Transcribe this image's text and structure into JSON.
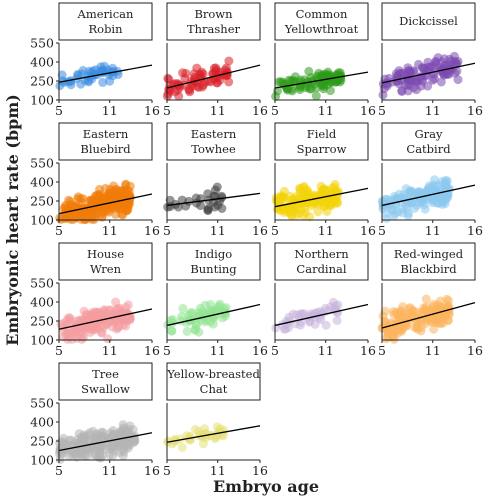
{
  "chart_data": {
    "type": "scatter",
    "ylabel": "Embryonic heart rate (bpm)",
    "xlabel": "Embryo age",
    "xlim": [
      5,
      16
    ],
    "ylim": [
      100,
      550
    ],
    "x_ticks": [
      "5",
      "11",
      "16"
    ],
    "y_ticks": [
      "100",
      "250",
      "400",
      "550"
    ],
    "panels": [
      {
        "name": "American Robin",
        "title_lines": [
          "American",
          "Robin"
        ],
        "color": "#3b8de0",
        "n": 45,
        "xmax": 12,
        "fit": [
          240,
          375
        ],
        "scatter": 55
      },
      {
        "name": "Brown Thrasher",
        "title_lines": [
          "Brown",
          "Thrasher"
        ],
        "color": "#d8202a",
        "n": 70,
        "xmax": 12.5,
        "fit": [
          195,
          375
        ],
        "scatter": 60
      },
      {
        "name": "Common Yellowthroat",
        "title_lines": [
          "Common",
          "Yellowthroat"
        ],
        "color": "#2e9a1a",
        "n": 90,
        "xmax": 13,
        "fit": [
          195,
          320
        ],
        "scatter": 55
      },
      {
        "name": "Dickcissel",
        "title_lines": [
          "Dickcissel"
        ],
        "color": "#7b4bb0",
        "n": 110,
        "xmax": 14,
        "fit": [
          235,
          390
        ],
        "scatter": 80
      },
      {
        "name": "Eastern Bluebird",
        "title_lines": [
          "Eastern",
          "Bluebird"
        ],
        "color": "#f07b0a",
        "n": 260,
        "xmax": 13.5,
        "fit": [
          150,
          305
        ],
        "scatter": 75
      },
      {
        "name": "Eastern Towhee",
        "title_lines": [
          "Eastern",
          "Towhee"
        ],
        "color": "#404040",
        "n": 28,
        "xmax": 11.5,
        "fit": [
          215,
          310
        ],
        "scatter": 50
      },
      {
        "name": "Field Sparrow",
        "title_lines": [
          "Field",
          "Sparrow"
        ],
        "color": "#f2d30a",
        "n": 140,
        "xmax": 12.5,
        "fit": [
          205,
          350
        ],
        "scatter": 80
      },
      {
        "name": "Gray Catbird",
        "title_lines": [
          "Gray",
          "Catbird"
        ],
        "color": "#8cc8ef",
        "n": 150,
        "xmax": 13,
        "fit": [
          215,
          375
        ],
        "scatter": 70
      },
      {
        "name": "House Wren",
        "title_lines": [
          "House",
          "Wren"
        ],
        "color": "#f49ca0",
        "n": 170,
        "xmax": 13.5,
        "fit": [
          185,
          345
        ],
        "scatter": 70
      },
      {
        "name": "Indigo Bunting",
        "title_lines": [
          "Indigo",
          "Bunting"
        ],
        "color": "#8fe38f",
        "n": 60,
        "xmax": 12,
        "fit": [
          215,
          380
        ],
        "scatter": 60
      },
      {
        "name": "Northern Cardinal",
        "title_lines": [
          "Northern",
          "Cardinal"
        ],
        "color": "#c9b4dd",
        "n": 45,
        "xmax": 12.5,
        "fit": [
          215,
          380
        ],
        "scatter": 55
      },
      {
        "name": "Red-winged Blackbird",
        "title_lines": [
          "Red-winged",
          "Blackbird"
        ],
        "color": "#fbb45e",
        "n": 160,
        "xmax": 13,
        "fit": [
          195,
          395
        ],
        "scatter": 80
      },
      {
        "name": "Tree Swallow",
        "title_lines": [
          "Tree",
          "Swallow"
        ],
        "color": "#b5b5b5",
        "n": 200,
        "xmax": 14,
        "fit": [
          175,
          315
        ],
        "scatter": 75
      },
      {
        "name": "Yellow-breasted Chat",
        "title_lines": [
          "Yellow-breasted",
          "Chat"
        ],
        "color": "#e6e07a",
        "n": 40,
        "xmax": 12,
        "fit": [
          240,
          370
        ],
        "scatter": 40
      }
    ]
  }
}
